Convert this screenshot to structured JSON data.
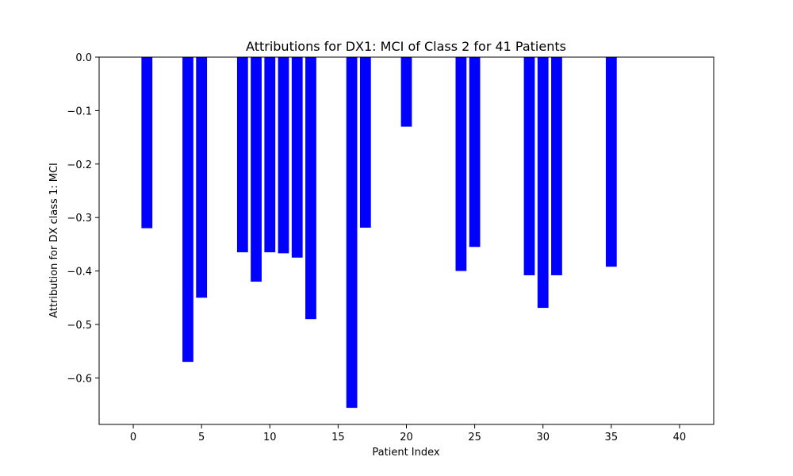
{
  "chart_data": {
    "type": "bar",
    "title": "Attributions for DX1: MCI of Class 2 for 41 Patients",
    "xlabel": "Patient Index",
    "ylabel": "Attribution for DX class 1: MCI",
    "xlim": [
      -2.5,
      42.5
    ],
    "ylim": [
      -0.687,
      0.0
    ],
    "x_ticks": [
      0,
      5,
      10,
      15,
      20,
      25,
      30,
      35,
      40
    ],
    "y_ticks": [
      0.0,
      -0.1,
      -0.2,
      -0.3,
      -0.4,
      -0.5,
      -0.6
    ],
    "y_tick_labels": [
      "0.0",
      "−0.1",
      "−0.2",
      "−0.3",
      "−0.4",
      "−0.5",
      "−0.6"
    ],
    "grid": false,
    "bar_color": "#0000ff",
    "x": [
      1,
      4,
      5,
      8,
      9,
      10,
      11,
      12,
      13,
      16,
      17,
      20,
      24,
      25,
      29,
      30,
      31,
      35
    ],
    "values": [
      -0.32,
      -0.57,
      -0.45,
      -0.365,
      -0.42,
      -0.365,
      -0.367,
      -0.375,
      -0.49,
      -0.656,
      -0.319,
      -0.13,
      -0.4,
      -0.355,
      -0.408,
      -0.469,
      -0.408,
      -0.392
    ]
  }
}
